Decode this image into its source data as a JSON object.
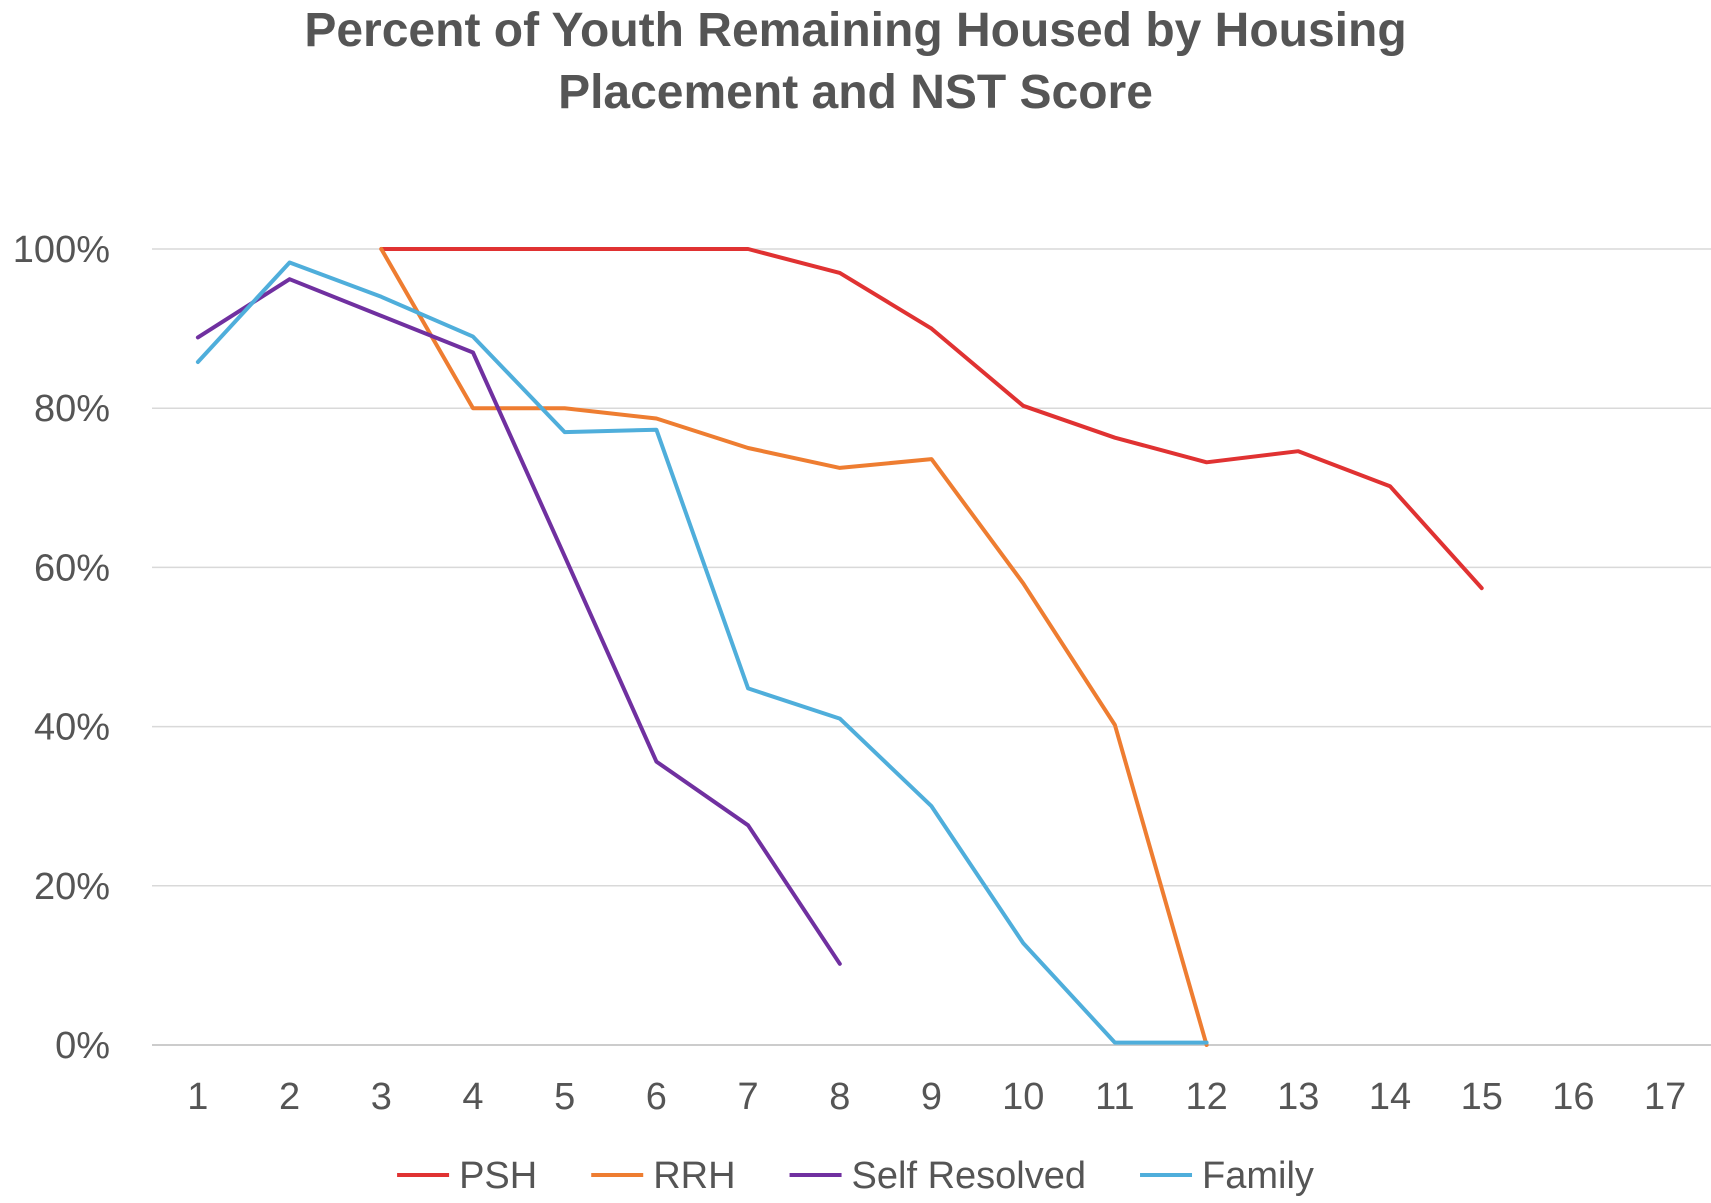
{
  "chart_data": {
    "type": "line",
    "title_lines": [
      "Percent of Youth Remaining Housed by Housing",
      "Placement and NST Score"
    ],
    "xlabel": "",
    "ylabel": "",
    "categories": [
      "1",
      "2",
      "3",
      "4",
      "5",
      "6",
      "7",
      "8",
      "9",
      "10",
      "11",
      "12",
      "13",
      "14",
      "15",
      "16",
      "17"
    ],
    "y_tick_labels": [
      "0%",
      "20%",
      "40%",
      "60%",
      "80%",
      "100%"
    ],
    "ylim": [
      0,
      100
    ],
    "grid": "horizontal",
    "legend_position": "bottom",
    "series": [
      {
        "name": "PSH",
        "color": "#e03232",
        "x": [
          3,
          4,
          5,
          6,
          7,
          8,
          9,
          10,
          11,
          12,
          13,
          14,
          15
        ],
        "values": [
          100,
          100,
          100,
          100,
          100,
          97,
          90,
          80.3,
          76.3,
          73.2,
          74.6,
          70.2,
          57.4
        ]
      },
      {
        "name": "RRH",
        "color": "#ee7d31",
        "x": [
          3,
          4,
          5,
          6,
          7,
          8,
          9,
          10,
          11,
          12
        ],
        "values": [
          100,
          80,
          80,
          78.7,
          75,
          72.5,
          73.6,
          58,
          40.2,
          0
        ]
      },
      {
        "name": "Self Resolved",
        "color": "#7030a0",
        "x": [
          1,
          2,
          3,
          4,
          5,
          6,
          7,
          8
        ],
        "values": [
          88.9,
          96.2,
          91.6,
          87,
          61.4,
          35.6,
          27.6,
          10.2
        ]
      },
      {
        "name": "Family",
        "color": "#4faedb",
        "x": [
          1,
          2,
          3,
          4,
          5,
          6,
          7,
          8,
          9,
          10,
          11,
          12
        ],
        "values": [
          85.8,
          98.3,
          94,
          89,
          77,
          77.3,
          44.8,
          41,
          30,
          12.8,
          0.3,
          0.3
        ]
      }
    ]
  }
}
